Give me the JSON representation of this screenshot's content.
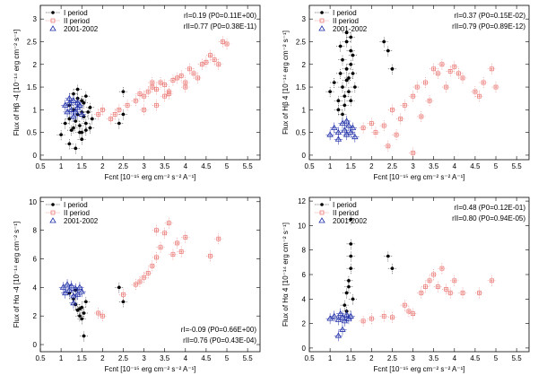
{
  "legend": {
    "series1": "I period",
    "series2": "II period",
    "series3": "2001-2002"
  },
  "colors": {
    "series1": "#000000",
    "series2": "#e8706c",
    "series3": "#1f2fa8"
  },
  "chart_data": [
    {
      "type": "scatter",
      "id": "hb-minus4",
      "ylabel": "Flux of Hβ -4 [10⁻¹⁴ erg cm⁻² s⁻¹]",
      "xlabel": "Fcnt [10⁻¹⁵ erg cm⁻² s⁻² A⁻¹]",
      "xlim": [
        0.5,
        5.8
      ],
      "ylim": [
        -0.1,
        3.3
      ],
      "xticks": [
        "0.5",
        "1",
        "1.5",
        "2",
        "2.5",
        "3",
        "3.5",
        "4",
        "4.5",
        "5",
        "5.5"
      ],
      "yticks": [
        "0",
        "0.5",
        "1",
        "1.5",
        "2",
        "2.5",
        "3"
      ],
      "ann1": "rI=0.19 (P0=0.11E+00)",
      "ann2": "rII=0.77 (P0=0.38E-11)",
      "ann_pos": "top-right",
      "series": [
        {
          "name": "I period",
          "x": [
            1.0,
            1.1,
            1.2,
            1.2,
            1.25,
            1.3,
            1.3,
            1.35,
            1.4,
            1.4,
            1.45,
            1.5,
            1.5,
            1.55,
            1.6,
            1.6,
            1.65,
            1.7,
            1.7,
            1.75,
            1.3,
            1.4,
            1.5,
            1.6,
            1.2,
            1.35,
            1.45,
            1.55,
            2.4,
            2.5,
            2.5,
            1.5
          ],
          "y": [
            0.45,
            0.7,
            0.8,
            1.1,
            0.55,
            0.6,
            1.0,
            0.75,
            0.9,
            1.25,
            0.65,
            0.5,
            1.2,
            0.85,
            0.7,
            1.3,
            0.95,
            0.6,
            1.05,
            0.8,
            1.35,
            1.45,
            0.35,
            0.55,
            0.25,
            0.15,
            0.5,
            1.15,
            0.7,
            0.9,
            1.4,
            0.95
          ]
        },
        {
          "name": "II period",
          "x": [
            2.2,
            2.3,
            2.4,
            2.6,
            2.8,
            2.9,
            3.0,
            3.1,
            3.2,
            3.3,
            3.4,
            3.5,
            3.6,
            3.7,
            3.8,
            3.9,
            4.0,
            4.1,
            4.2,
            4.4,
            4.6,
            4.8,
            4.9,
            5.0,
            3.0,
            3.2,
            3.5,
            4.0,
            4.3,
            4.7,
            1.9,
            2.0,
            3.3,
            3.6,
            4.5
          ],
          "y": [
            0.8,
            0.9,
            1.0,
            1.1,
            1.2,
            1.35,
            1.3,
            1.4,
            1.5,
            1.45,
            1.6,
            1.55,
            1.4,
            1.65,
            1.7,
            1.75,
            1.5,
            1.9,
            1.8,
            2.0,
            2.2,
            2.0,
            2.5,
            2.45,
            1.0,
            1.6,
            1.3,
            1.6,
            1.7,
            2.1,
            0.9,
            1.0,
            1.1,
            1.35,
            2.05
          ]
        },
        {
          "name": "2001-2002",
          "x": [
            1.1,
            1.15,
            1.2,
            1.25,
            1.3,
            1.35,
            1.4,
            1.45,
            1.5,
            1.2,
            1.3,
            1.4
          ],
          "y": [
            1.1,
            0.95,
            1.15,
            1.0,
            1.2,
            0.95,
            1.05,
            1.1,
            0.9,
            1.25,
            0.85,
            1.15
          ]
        }
      ]
    },
    {
      "type": "scatter",
      "id": "hb-plus4",
      "ylabel": "Flux of Hβ 4 [10⁻¹⁴ erg cm⁻² s⁻¹]",
      "xlabel": "Fcnt [10⁻¹⁵ erg cm⁻² s⁻² A⁻¹]",
      "xlim": [
        0.5,
        5.8
      ],
      "ylim": [
        -0.1,
        3.3
      ],
      "xticks": [
        "0.5",
        "1",
        "1.5",
        "2",
        "2.5",
        "3",
        "3.5",
        "4",
        "4.5",
        "5",
        "5.5"
      ],
      "yticks": [
        "0",
        "0.5",
        "1",
        "1.5",
        "2",
        "2.5",
        "3"
      ],
      "ann1": "rI=0.37 (P0=0.15E-02)",
      "ann2": "rII=0.79 (P0=0.89E-12)",
      "ann_pos": "top-right",
      "series": [
        {
          "name": "I period",
          "x": [
            1.0,
            1.1,
            1.2,
            1.25,
            1.3,
            1.3,
            1.35,
            1.4,
            1.4,
            1.45,
            1.5,
            1.5,
            1.55,
            1.6,
            1.2,
            1.3,
            1.4,
            1.5,
            1.35,
            1.45,
            1.55,
            1.25,
            2.3,
            2.4,
            2.5,
            1.4,
            1.5
          ],
          "y": [
            1.4,
            1.6,
            1.2,
            1.8,
            1.5,
            2.1,
            1.3,
            1.9,
            2.5,
            1.7,
            1.2,
            2.3,
            1.8,
            1.5,
            1.0,
            0.9,
            2.7,
            2.0,
            1.1,
            1.4,
            2.2,
            2.4,
            2.5,
            2.3,
            1.9,
            1.65,
            2.6
          ]
        },
        {
          "name": "II period",
          "x": [
            1.8,
            2.0,
            2.1,
            2.3,
            2.5,
            2.7,
            2.8,
            3.0,
            3.1,
            3.3,
            3.5,
            3.6,
            3.7,
            3.9,
            4.0,
            4.2,
            4.5,
            4.7,
            4.9,
            5.0,
            3.2,
            3.4,
            3.8,
            4.1,
            2.4,
            2.6,
            4.6,
            3.0
          ],
          "y": [
            0.6,
            0.7,
            0.5,
            0.65,
            1.0,
            0.8,
            1.1,
            1.3,
            1.5,
            1.6,
            1.9,
            1.8,
            2.0,
            1.85,
            1.95,
            1.7,
            1.4,
            1.6,
            1.9,
            1.5,
            0.85,
            1.2,
            1.5,
            1.8,
            0.2,
            0.45,
            1.3,
            0.05
          ]
        },
        {
          "name": "2001-2002",
          "x": [
            1.0,
            1.1,
            1.2,
            1.3,
            1.35,
            1.4,
            1.45,
            1.5,
            1.55,
            1.6,
            1.2,
            1.4
          ],
          "y": [
            0.45,
            0.6,
            0.5,
            0.7,
            0.55,
            0.45,
            0.65,
            0.5,
            0.6,
            0.4,
            0.35,
            0.75
          ]
        }
      ]
    },
    {
      "type": "scatter",
      "id": "ha-minus4",
      "ylabel": "Flux of Hα -4 [10⁻¹⁴ erg cm⁻² s⁻¹]",
      "xlabel": "Fcnt [10⁻¹⁵ erg cm⁻² s⁻² A⁻¹]",
      "xlim": [
        0.5,
        5.8
      ],
      "ylim": [
        -0.5,
        10.3
      ],
      "xticks": [
        "0.5",
        "1",
        "1.5",
        "2",
        "2.5",
        "3",
        "3.5",
        "4",
        "4.5",
        "5",
        "5.5"
      ],
      "yticks": [
        "0",
        "2",
        "4",
        "6",
        "8",
        "10"
      ],
      "ann1": "rI=-0.09 (P0=0.66E+00)",
      "ann2": "rII=0.76 (P0=0.43E-04)",
      "ann_pos": "bottom-right",
      "series": [
        {
          "name": "I period",
          "x": [
            1.2,
            1.3,
            1.35,
            1.4,
            1.45,
            1.5,
            1.5,
            1.55,
            1.6,
            1.35,
            1.45,
            2.4,
            2.5,
            1.55
          ],
          "y": [
            3.6,
            3.2,
            2.8,
            2.4,
            2.0,
            2.6,
            1.8,
            2.2,
            3.0,
            3.8,
            2.5,
            4.0,
            3.0,
            0.6
          ]
        },
        {
          "name": "II period",
          "x": [
            1.9,
            2.0,
            2.5,
            2.8,
            3.0,
            3.1,
            3.3,
            3.4,
            3.5,
            3.6,
            3.7,
            3.8,
            3.9,
            4.0,
            4.6,
            4.8,
            2.9,
            3.2,
            3.3
          ],
          "y": [
            2.2,
            2.0,
            3.5,
            4.2,
            4.7,
            5.0,
            6.1,
            6.8,
            7.8,
            8.5,
            6.3,
            7.1,
            6.5,
            7.5,
            6.2,
            7.4,
            4.4,
            5.5,
            8.0
          ]
        },
        {
          "name": "2001-2002",
          "x": [
            1.05,
            1.1,
            1.15,
            1.2,
            1.25,
            1.3,
            1.35,
            1.4,
            1.45,
            1.5,
            1.3
          ],
          "y": [
            4.0,
            3.6,
            4.2,
            3.8,
            4.1,
            3.4,
            3.9,
            3.5,
            4.0,
            3.7,
            2.9
          ]
        }
      ]
    },
    {
      "type": "scatter",
      "id": "ha-plus4",
      "ylabel": "Flux of Hα 4 [10⁻¹⁴ erg cm⁻² s⁻¹]",
      "xlabel": "Fcnt [10⁻¹⁵ erg cm⁻² s⁻² A⁻¹]",
      "xlim": [
        0.5,
        5.8
      ],
      "ylim": [
        -0.3,
        12.3
      ],
      "xticks": [
        "0.5",
        "1",
        "1.5",
        "2",
        "2.5",
        "3",
        "3.5",
        "4",
        "4.5",
        "5",
        "5.5"
      ],
      "yticks": [
        "0",
        "2",
        "4",
        "6",
        "8",
        "10",
        "12"
      ],
      "ann1": "rI=0.48 (P0=0.12E-01)",
      "ann2": "rII=0.80 (P0=0.94E-05)",
      "ann_pos": "top-right",
      "series": [
        {
          "name": "I period",
          "x": [
            1.35,
            1.4,
            1.45,
            1.5,
            1.5,
            1.55,
            1.4,
            1.45,
            1.5,
            2.4,
            2.5,
            1.5
          ],
          "y": [
            3.5,
            4.5,
            5.5,
            6.5,
            7.5,
            4.0,
            3.0,
            5.0,
            8.5,
            7.5,
            6.5,
            10.5
          ]
        },
        {
          "name": "II period",
          "x": [
            1.8,
            2.0,
            2.3,
            2.5,
            2.8,
            3.0,
            3.2,
            3.3,
            3.4,
            3.5,
            3.6,
            3.7,
            3.8,
            3.9,
            4.0,
            4.2,
            4.6,
            4.9,
            2.9
          ],
          "y": [
            2.2,
            2.4,
            2.6,
            2.5,
            3.5,
            2.8,
            4.5,
            5.0,
            5.5,
            6.0,
            5.0,
            6.5,
            4.8,
            4.5,
            5.5,
            4.5,
            4.5,
            5.5,
            3.0
          ]
        },
        {
          "name": "2001-2002",
          "x": [
            1.0,
            1.1,
            1.2,
            1.25,
            1.3,
            1.35,
            1.4,
            1.45,
            1.5,
            1.3,
            1.2
          ],
          "y": [
            2.4,
            2.6,
            2.3,
            2.8,
            2.5,
            2.2,
            2.7,
            2.4,
            2.6,
            1.5,
            1.0
          ]
        }
      ]
    }
  ]
}
